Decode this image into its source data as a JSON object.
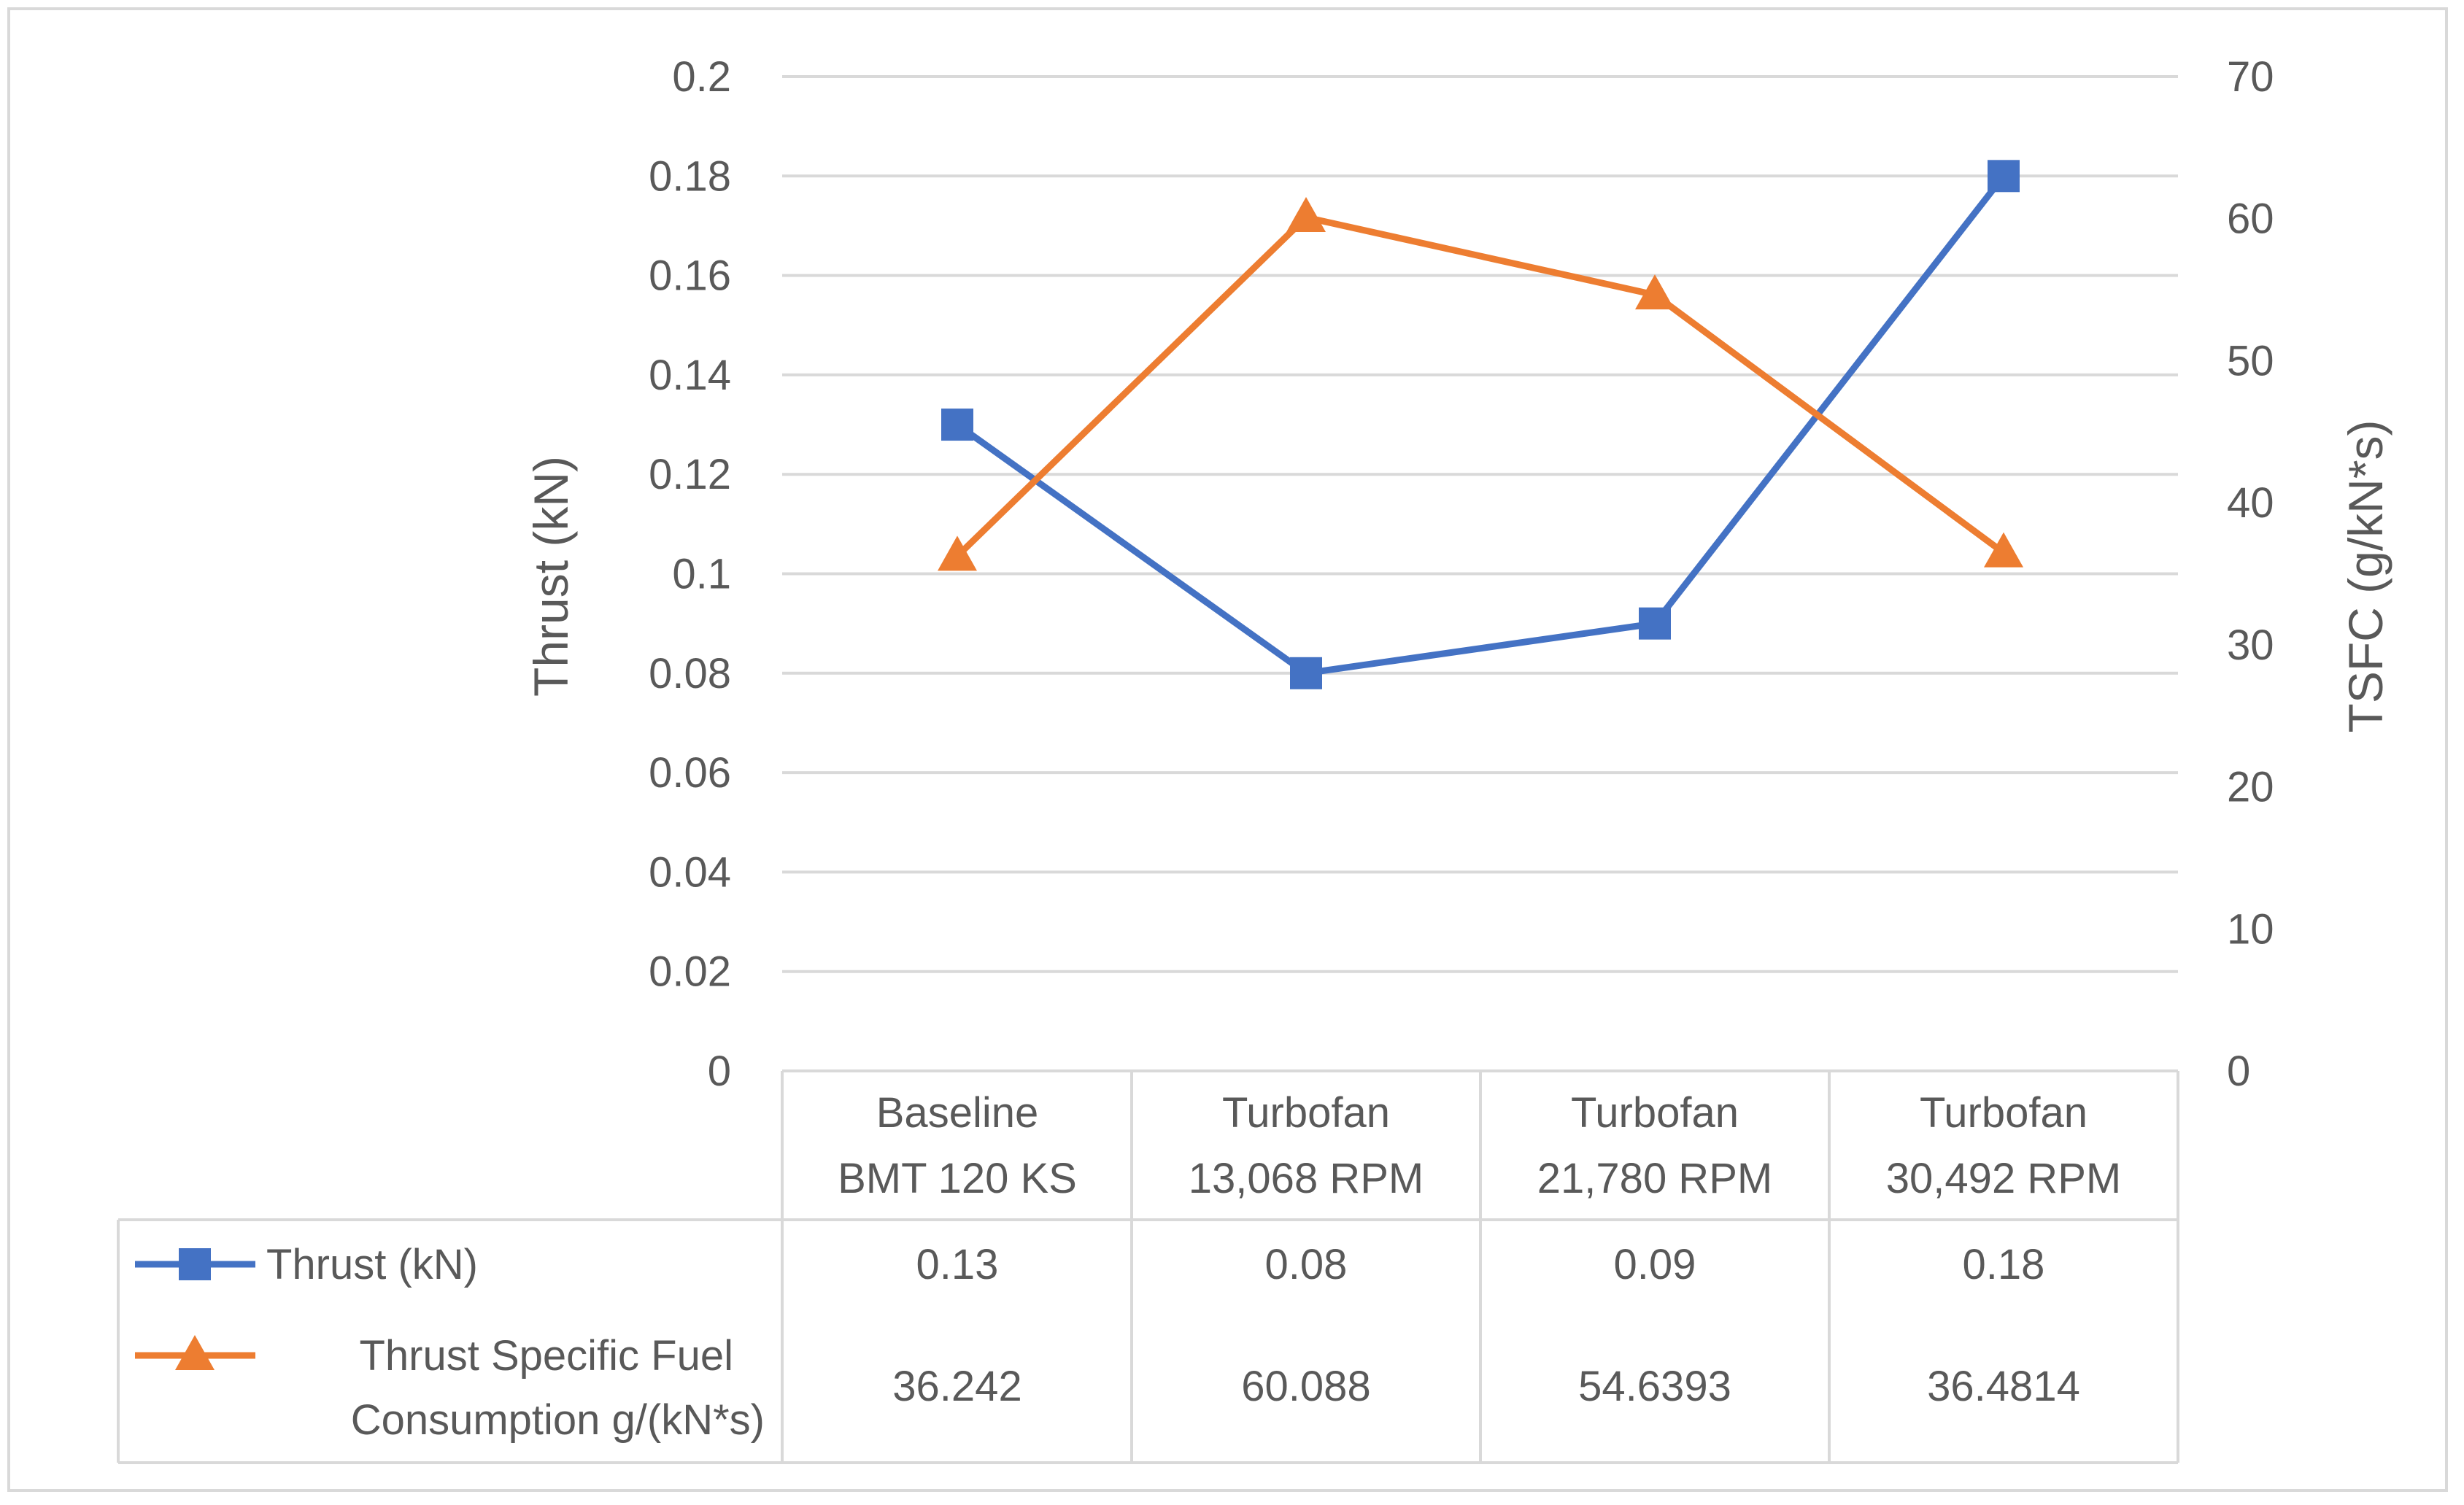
{
  "chart_data": {
    "type": "line",
    "title": "",
    "categories": [
      [
        "Baseline",
        "BMT 120 KS"
      ],
      [
        "Turbofan",
        "13,068 RPM"
      ],
      [
        "Turbofan",
        "21,780 RPM"
      ],
      [
        "Turbofan",
        "30,492 RPM"
      ]
    ],
    "y_left": {
      "label": "Thrust (kN)",
      "ticks": [
        "0",
        "0.02",
        "0.04",
        "0.06",
        "0.08",
        "0.1",
        "0.12",
        "0.14",
        "0.16",
        "0.18",
        "0.2"
      ],
      "range": [
        0,
        0.2
      ]
    },
    "y_right": {
      "label": "TSFC (g/kN*s)",
      "ticks": [
        "0",
        "10",
        "20",
        "30",
        "40",
        "50",
        "60",
        "70"
      ],
      "range": [
        0,
        70
      ]
    },
    "series": [
      {
        "name": "Thrust  (kN)",
        "axis": "left",
        "marker": "square",
        "color": "#4472c4",
        "values": [
          0.13,
          0.08,
          0.09,
          0.18
        ],
        "table_values": [
          "0.13",
          "0.08",
          "0.09",
          "0.18"
        ],
        "legend_lines": [
          "Thrust  (kN)"
        ]
      },
      {
        "name": "Thrust Specific Fuel Consumption g/(kN*s)",
        "axis": "right",
        "marker": "triangle",
        "color": "#ed7d31",
        "values": [
          36.242,
          60.088,
          54.6393,
          36.4814
        ],
        "table_values": [
          "36.242",
          "60.088",
          "54.6393",
          "36.4814"
        ],
        "legend_lines": [
          "Thrust Specific Fuel",
          "Consumption g/(kN*s)"
        ]
      }
    ],
    "grid": true,
    "legend": "data-table"
  }
}
